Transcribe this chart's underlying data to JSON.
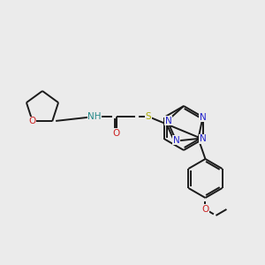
{
  "bg_color": "#ebebeb",
  "bond_color": "#1a1a1a",
  "atom_colors": {
    "N": "#2222cc",
    "O": "#cc2222",
    "S": "#aaaa00",
    "H": "#228888",
    "C": "#1a1a1a"
  },
  "figsize": [
    3.0,
    3.0
  ],
  "dpi": 100,
  "lw": 1.4,
  "fontsize": 7.5
}
